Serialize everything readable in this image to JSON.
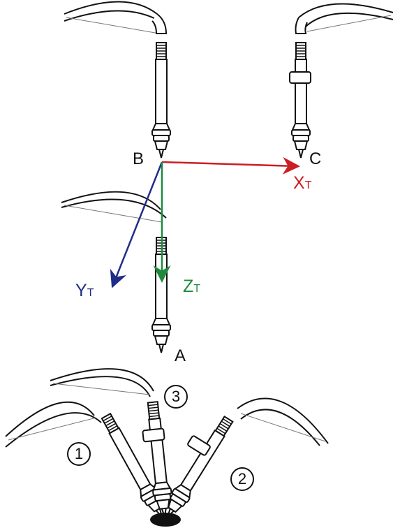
{
  "points": {
    "a": "A",
    "b": "B",
    "c": "C"
  },
  "axes": {
    "x": {
      "letter": "X",
      "sub": "T",
      "color": "#cc1e25"
    },
    "y": {
      "letter": "Y",
      "sub": "T",
      "color": "#1f2d87"
    },
    "z": {
      "letter": "Z",
      "sub": "T",
      "color": "#1e8b3c"
    }
  },
  "markers": [
    "1",
    "2",
    "3"
  ],
  "colors": {
    "line": "#111111",
    "thin_line": "#777777"
  }
}
